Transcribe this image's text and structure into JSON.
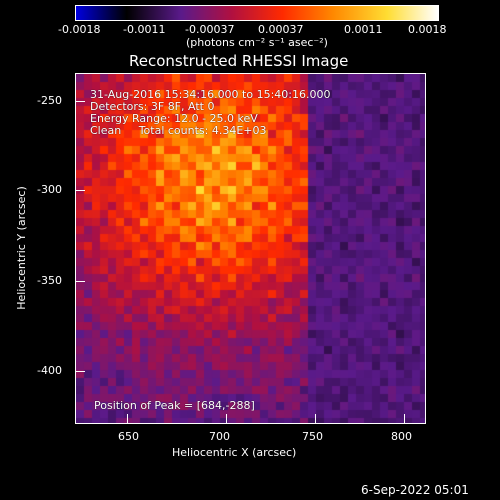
{
  "colorbar": {
    "tick_labels": [
      "-0.0018",
      "-0.0011",
      "-0.00037",
      "0.00037",
      "0.0011",
      "0.0018"
    ],
    "units_label": "(photons cm⁻² s⁻¹ asec⁻²)",
    "range": [
      -0.0018,
      0.0018
    ],
    "colors": [
      "#0000e0",
      "#000000",
      "#5a1a8a",
      "#b01040",
      "#ff2a00",
      "#ff8800",
      "#ffdd33",
      "#ffffff"
    ]
  },
  "title": "Reconstructed RHESSI Image",
  "image_info": {
    "date_range": "31-Aug-2016 15:34:16.000 to 15:40:16.000",
    "detectors": "Detectors: 3F 8F, Att 0",
    "energy": "Energy Range: 12.0 - 25.0 keV",
    "clean": "Clean     Total counts: 4.34E+03",
    "peak": "Position of Peak = [684,-288]"
  },
  "axes": {
    "xlabel": "Heliocentric X (arcsec)",
    "ylabel": "Heliocentric Y (arcsec)",
    "xticks": [
      "650",
      "700",
      "750",
      "800"
    ],
    "yticks": [
      "-250",
      "-300",
      "-350",
      "-400"
    ]
  },
  "footer_timestamp": "6-Sep-2022 05:01"
}
